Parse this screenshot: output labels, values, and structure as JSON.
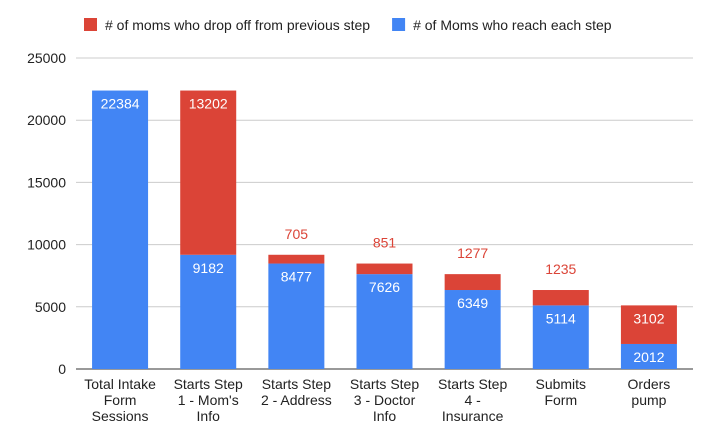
{
  "chart_data": {
    "type": "bar",
    "stacked": true,
    "categories": [
      [
        "Total Intake",
        "Form",
        "Sessions"
      ],
      [
        "Starts Step",
        "1 - Mom's",
        "Info"
      ],
      [
        "Starts Step",
        "2 - Address"
      ],
      [
        "Starts Step",
        "3 - Doctor",
        "Info"
      ],
      [
        "Starts Step",
        "4 -",
        "Insurance"
      ],
      [
        "Submits",
        "Form"
      ],
      [
        "Orders",
        "pump"
      ]
    ],
    "series": [
      {
        "name": "# of Moms who reach each step",
        "color": "#4285f4",
        "values": [
          22384,
          9182,
          8477,
          7626,
          6349,
          5114,
          2012
        ]
      },
      {
        "name": "# of moms who drop off from previous step",
        "color": "#db4437",
        "values": [
          0,
          13202,
          705,
          851,
          1277,
          1235,
          3102
        ]
      }
    ],
    "legend_order": [
      1,
      0
    ],
    "legend_position": "top",
    "ylim": [
      0,
      25000
    ],
    "yticks": [
      "0",
      "5000",
      "10000",
      "15000",
      "20000",
      "25000"
    ],
    "title": "",
    "xlabel": "",
    "ylabel": "",
    "grid": true
  }
}
